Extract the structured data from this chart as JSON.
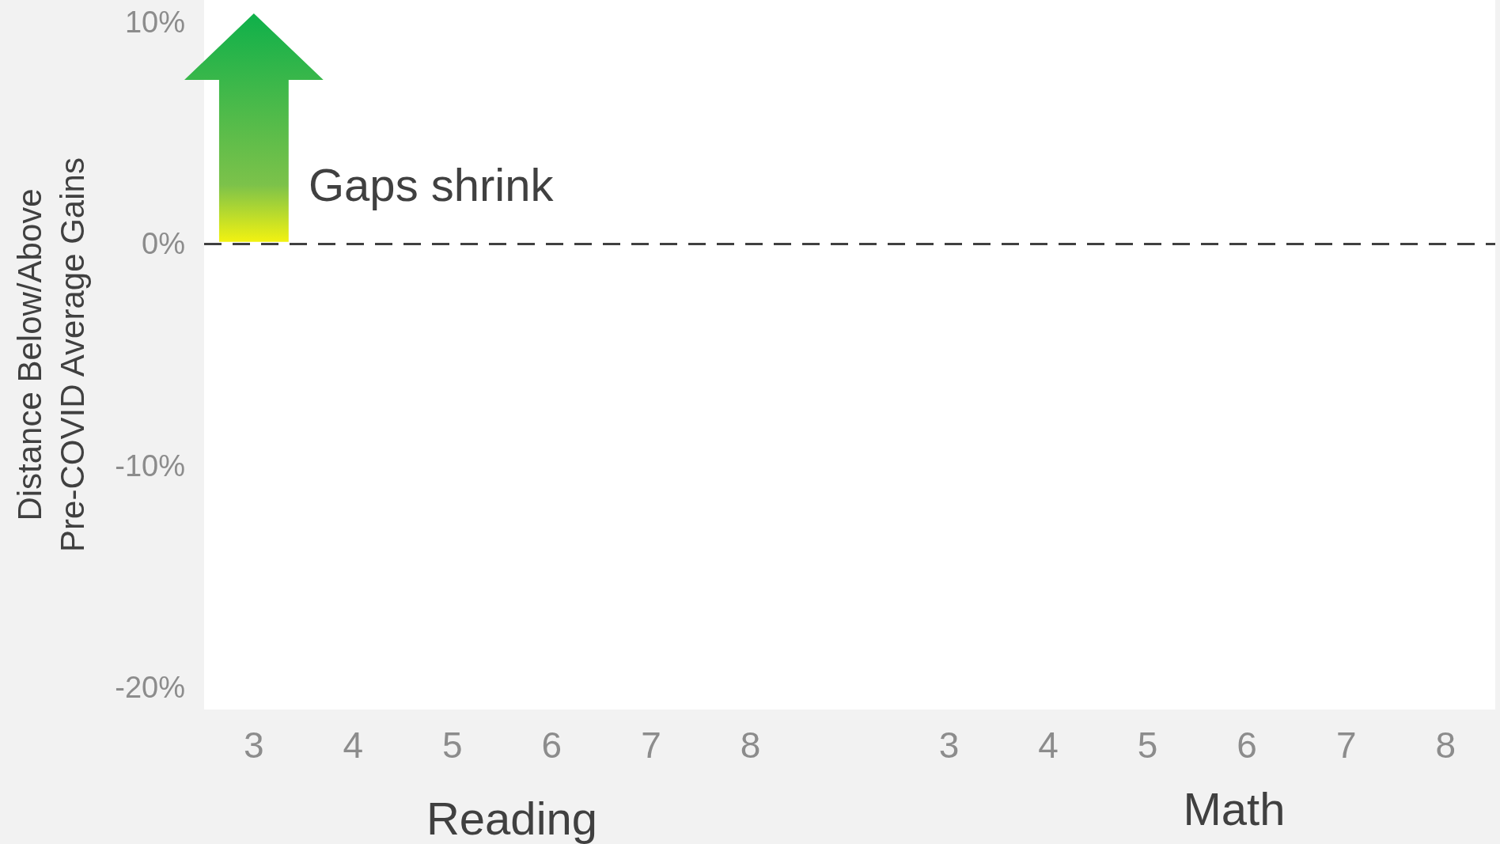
{
  "chart_data": {
    "type": "bar",
    "categories": [
      "3",
      "4",
      "5",
      "6",
      "7",
      "8",
      null,
      "3",
      "4",
      "5",
      "6",
      "7",
      "8"
    ],
    "values": [
      null,
      null,
      null,
      null,
      null,
      null,
      null,
      null,
      null,
      null,
      null,
      null,
      null
    ],
    "ylabel": "Distance Below/Above\nPre-COVID Average Gains",
    "ylim": [
      -21,
      11
    ],
    "yticks": [
      {
        "value": -20,
        "label": "-20%"
      },
      {
        "value": -10,
        "label": "-10%"
      },
      {
        "value": 0,
        "label": "0%"
      },
      {
        "value": 10,
        "label": "10%"
      }
    ],
    "ref_lines": [
      {
        "axis": "y",
        "value": 0,
        "color": "#404040",
        "line_style": "dashed"
      }
    ],
    "annotations": [
      "Gaps shrink",
      "Reading",
      "Math"
    ],
    "grid": false
  }
}
